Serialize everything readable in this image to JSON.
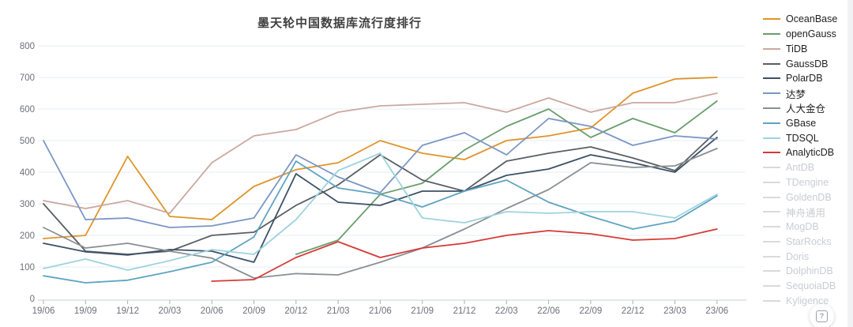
{
  "title": "墨天轮中国数据库流行度排行",
  "help_button": {
    "icon": "help-boxed-icon",
    "glyph": "?"
  },
  "chart_data": {
    "type": "line",
    "title": "墨天轮中国数据库流行度排行",
    "x_labels": [
      "19/06",
      "19/09",
      "19/12",
      "20/03",
      "20/06",
      "20/09",
      "20/12",
      "21/03",
      "21/06",
      "21/09",
      "21/12",
      "22/03",
      "22/06",
      "22/09",
      "22/12",
      "23/03",
      "23/06"
    ],
    "y_ticks": [
      0,
      100,
      200,
      300,
      400,
      500,
      600,
      700,
      800
    ],
    "ylim": [
      0,
      800
    ],
    "grid": "horizontal-only",
    "legend_position": "right",
    "series": [
      {
        "id": "oceanbase",
        "name": "OceanBase",
        "color": "#df9429",
        "values": [
          190,
          200,
          450,
          260,
          250,
          355,
          408,
          430,
          500,
          460,
          440,
          500,
          515,
          540,
          650,
          695,
          700
        ]
      },
      {
        "id": "opengauss",
        "name": "openGauss",
        "color": "#6a9e6e",
        "values": [
          null,
          null,
          null,
          null,
          null,
          null,
          140,
          185,
          330,
          365,
          470,
          545,
          600,
          510,
          570,
          525,
          625
        ]
      },
      {
        "id": "tidb",
        "name": "TiDB",
        "color": "#cba89f",
        "values": [
          310,
          285,
          310,
          270,
          430,
          515,
          535,
          590,
          610,
          615,
          620,
          590,
          635,
          590,
          620,
          620,
          650
        ]
      },
      {
        "id": "gaussdb",
        "name": "GaussDB",
        "color": "#595f63",
        "values": [
          300,
          150,
          140,
          150,
          200,
          210,
          295,
          360,
          455,
          375,
          340,
          435,
          460,
          480,
          445,
          405,
          530
        ]
      },
      {
        "id": "polardb",
        "name": "PolarDB",
        "color": "#3d5166",
        "values": [
          175,
          148,
          138,
          155,
          150,
          115,
          395,
          305,
          295,
          340,
          340,
          390,
          410,
          455,
          430,
          400,
          510
        ]
      },
      {
        "id": "dameng",
        "name": "达梦",
        "color": "#7a96c5",
        "values": [
          500,
          250,
          255,
          225,
          230,
          255,
          455,
          385,
          335,
          485,
          525,
          455,
          570,
          545,
          485,
          515,
          505
        ]
      },
      {
        "id": "renda-jincang",
        "name": "人大金仓",
        "color": "#8a8f94",
        "values": [
          225,
          160,
          175,
          150,
          128,
          65,
          79,
          75,
          115,
          160,
          220,
          285,
          345,
          430,
          415,
          420,
          475
        ]
      },
      {
        "id": "gbase",
        "name": "GBase",
        "color": "#5fa3c1",
        "values": [
          72,
          50,
          58,
          85,
          115,
          195,
          435,
          350,
          330,
          290,
          340,
          375,
          305,
          260,
          220,
          245,
          325
        ]
      },
      {
        "id": "tdsql",
        "name": "TDSQL",
        "color": "#9ed3dd",
        "values": [
          95,
          125,
          90,
          120,
          155,
          140,
          250,
          405,
          460,
          255,
          240,
          275,
          270,
          275,
          275,
          255,
          330
        ]
      },
      {
        "id": "analyticdb",
        "name": "AnalyticDB",
        "color": "#d53a35",
        "values": [
          null,
          null,
          null,
          null,
          55,
          60,
          130,
          180,
          130,
          160,
          175,
          200,
          215,
          205,
          185,
          190,
          220
        ]
      }
    ],
    "disabled_series": [
      {
        "id": "antdb",
        "name": "AntDB"
      },
      {
        "id": "tdengine",
        "name": "TDengine"
      },
      {
        "id": "goldendb",
        "name": "GoldenDB"
      },
      {
        "id": "shenzhou-tongyong",
        "name": "神舟通用"
      },
      {
        "id": "mogdb",
        "name": "MogDB"
      },
      {
        "id": "starrocks",
        "name": "StarRocks"
      },
      {
        "id": "doris",
        "name": "Doris"
      },
      {
        "id": "dolphindb",
        "name": "DolphinDB"
      },
      {
        "id": "sequoiadb",
        "name": "SequoiaDB"
      },
      {
        "id": "kyligence",
        "name": "Kyligence"
      }
    ],
    "disabled_color": "#d8dade"
  }
}
